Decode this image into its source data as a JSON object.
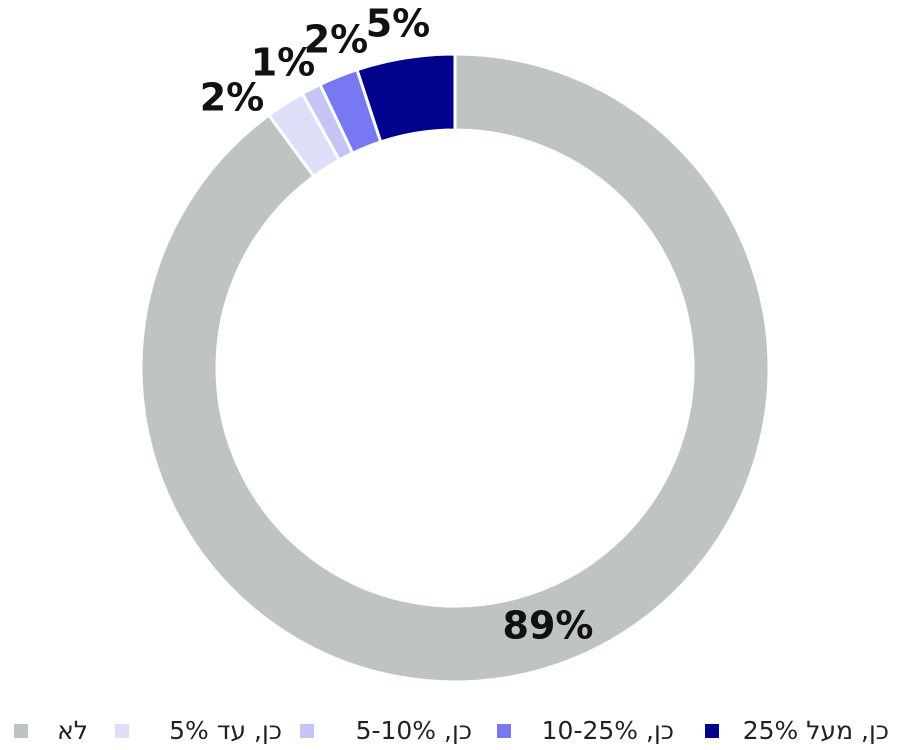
{
  "chart_data": {
    "type": "donut",
    "categories": [
      "לא",
      "כן, עד 5%",
      "כן, 5-10%",
      "כן, 10-25%",
      "כן, מעל 25%"
    ],
    "values": [
      89,
      2,
      1,
      2,
      5
    ],
    "value_labels": [
      "89%",
      "2%",
      "1%",
      "2%",
      "5%"
    ],
    "colors": [
      "#bec4c2",
      "#dedef9",
      "#c5c5f5",
      "#7878f3",
      "#02028c"
    ],
    "legend": "bottom"
  }
}
